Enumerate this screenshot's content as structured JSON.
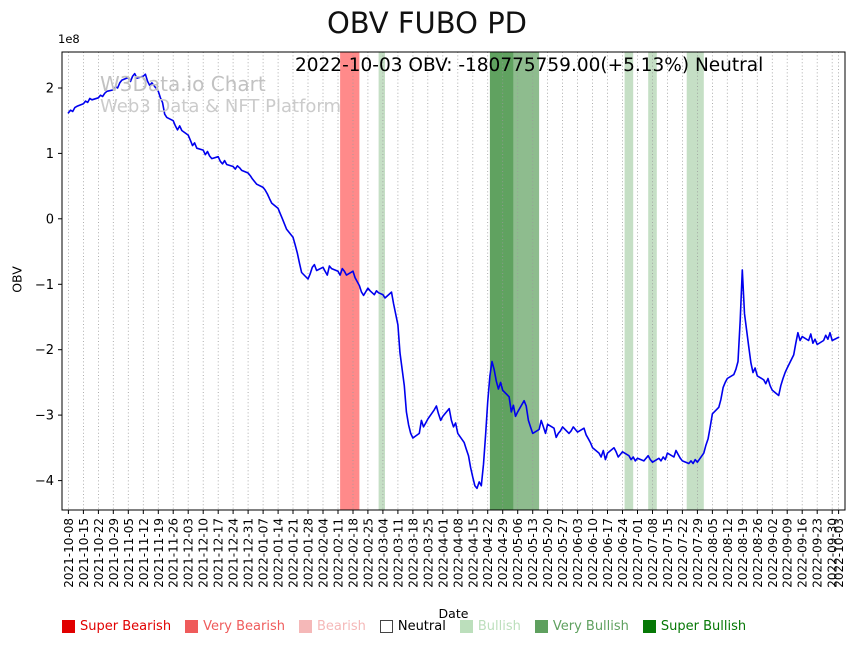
{
  "title": "OBV FUBO PD",
  "annotation": "2022-10-03 OBV: -180775759.00(+5.13%) Neutral",
  "watermark": {
    "line1": "W3Data.io Chart",
    "line2": "Web3 Data & NFT Platform"
  },
  "axes": {
    "ylabel": "OBV",
    "xlabel": "Date",
    "offset_text": "1e8"
  },
  "legend": [
    {
      "id": "super-bearish",
      "label": "Super Bearish",
      "color": "#e10000"
    },
    {
      "id": "very-bearish",
      "label": "Very Bearish",
      "color": "#ef5b5b"
    },
    {
      "id": "bearish",
      "label": "Bearish",
      "color": "#f5b8b8"
    },
    {
      "id": "neutral",
      "label": "Neutral",
      "color": "#ffffff",
      "text_color": "#000000",
      "border": true
    },
    {
      "id": "bullish",
      "label": "Bullish",
      "color": "#bcdfbc"
    },
    {
      "id": "very-bullish",
      "label": "Very Bullish",
      "color": "#5fa05f"
    },
    {
      "id": "super-bullish",
      "label": "Super Bullish",
      "color": "#067806"
    }
  ],
  "chart_data": {
    "type": "line",
    "title": "OBV FUBO PD",
    "xlabel": "Date",
    "ylabel": "OBV",
    "value_scale": 100000000.0,
    "ylim": [
      -4.45,
      2.55
    ],
    "xlim_days": [
      -3,
      363
    ],
    "line_color": "#0000ee",
    "grid": "vertical-dotted",
    "legend_position": "bottom",
    "ytick_values": [
      2,
      1,
      0,
      -1,
      -2,
      -3,
      -4
    ],
    "ytick_labels": [
      "2",
      "1",
      "0",
      "−1",
      "−2",
      "−3",
      "−4"
    ],
    "x_tick_days": [
      0,
      7,
      14,
      21,
      28,
      35,
      42,
      49,
      56,
      63,
      70,
      77,
      84,
      91,
      98,
      105,
      112,
      119,
      126,
      133,
      140,
      147,
      154,
      161,
      168,
      175,
      182,
      189,
      196,
      203,
      210,
      217,
      224,
      231,
      238,
      245,
      252,
      259,
      266,
      273,
      280,
      287,
      294,
      301,
      308,
      315,
      322,
      329,
      336,
      343,
      350,
      357,
      360
    ],
    "x_tick_labels": [
      "2021-10-08",
      "2021-10-15",
      "2021-10-22",
      "2021-10-29",
      "2021-11-05",
      "2021-11-12",
      "2021-11-19",
      "2021-11-26",
      "2021-12-03",
      "2021-12-10",
      "2021-12-17",
      "2021-12-24",
      "2021-12-31",
      "2022-01-07",
      "2022-01-14",
      "2022-01-21",
      "2022-01-28",
      "2022-02-04",
      "2022-02-11",
      "2022-02-18",
      "2022-02-25",
      "2022-03-04",
      "2022-03-11",
      "2022-03-18",
      "2022-03-25",
      "2022-04-01",
      "2022-04-08",
      "2022-04-15",
      "2022-04-22",
      "2022-04-29",
      "2022-05-06",
      "2022-05-13",
      "2022-05-20",
      "2022-05-27",
      "2022-06-03",
      "2022-06-10",
      "2022-06-17",
      "2022-06-24",
      "2022-07-01",
      "2022-07-08",
      "2022-07-15",
      "2022-07-22",
      "2022-07-29",
      "2022-08-05",
      "2022-08-12",
      "2022-08-19",
      "2022-08-26",
      "2022-09-02",
      "2022-09-09",
      "2022-09-16",
      "2022-09-23",
      "2022-09-30",
      "2022-10-03"
    ],
    "bands": [
      {
        "label": "Very Bearish",
        "start_day": 127,
        "end_day": 136,
        "color": "#ff2a2a",
        "opacity": 0.55
      },
      {
        "label": "Bullish",
        "start_day": 145,
        "end_day": 148,
        "color": "#2e8b2e",
        "opacity": 0.28
      },
      {
        "label": "Very Bullish",
        "start_day": 197,
        "end_day": 208,
        "color": "#1d7a1d",
        "opacity": 0.7
      },
      {
        "label": "Very Bullish",
        "start_day": 208,
        "end_day": 220,
        "color": "#1d7a1d",
        "opacity": 0.5
      },
      {
        "label": "Bullish",
        "start_day": 260,
        "end_day": 264,
        "color": "#2e8b2e",
        "opacity": 0.28
      },
      {
        "label": "Bullish",
        "start_day": 271,
        "end_day": 275,
        "color": "#2e8b2e",
        "opacity": 0.28
      },
      {
        "label": "Bullish",
        "start_day": 289,
        "end_day": 297,
        "color": "#2e8b2e",
        "opacity": 0.28
      }
    ],
    "series": [
      {
        "name": "OBV",
        "points": [
          [
            0,
            1.62
          ],
          [
            1,
            1.66
          ],
          [
            2,
            1.64
          ],
          [
            3,
            1.7
          ],
          [
            4,
            1.72
          ],
          [
            7,
            1.76
          ],
          [
            8,
            1.8
          ],
          [
            9,
            1.78
          ],
          [
            10,
            1.84
          ],
          [
            11,
            1.82
          ],
          [
            14,
            1.85
          ],
          [
            15,
            1.89
          ],
          [
            16,
            1.87
          ],
          [
            17,
            1.92
          ],
          [
            18,
            1.95
          ],
          [
            21,
            1.97
          ],
          [
            22,
            2.02
          ],
          [
            23,
            2.0
          ],
          [
            24,
            2.08
          ],
          [
            25,
            2.12
          ],
          [
            28,
            2.16
          ],
          [
            29,
            2.1
          ],
          [
            30,
            2.18
          ],
          [
            31,
            2.22
          ],
          [
            32,
            2.15
          ],
          [
            35,
            2.18
          ],
          [
            36,
            2.21
          ],
          [
            37,
            2.1
          ],
          [
            38,
            2.04
          ],
          [
            39,
            2.08
          ],
          [
            42,
            1.95
          ],
          [
            43,
            1.85
          ],
          [
            44,
            1.78
          ],
          [
            45,
            1.6
          ],
          [
            46,
            1.55
          ],
          [
            49,
            1.5
          ],
          [
            50,
            1.42
          ],
          [
            51,
            1.36
          ],
          [
            52,
            1.42
          ],
          [
            53,
            1.35
          ],
          [
            56,
            1.28
          ],
          [
            57,
            1.2
          ],
          [
            58,
            1.12
          ],
          [
            59,
            1.16
          ],
          [
            60,
            1.08
          ],
          [
            63,
            1.05
          ],
          [
            64,
            0.98
          ],
          [
            65,
            1.03
          ],
          [
            66,
            0.96
          ],
          [
            67,
            0.92
          ],
          [
            70,
            0.95
          ],
          [
            71,
            0.88
          ],
          [
            72,
            0.84
          ],
          [
            73,
            0.89
          ],
          [
            74,
            0.83
          ],
          [
            77,
            0.8
          ],
          [
            78,
            0.76
          ],
          [
            79,
            0.81
          ],
          [
            80,
            0.78
          ],
          [
            81,
            0.74
          ],
          [
            84,
            0.7
          ],
          [
            85,
            0.66
          ],
          [
            86,
            0.61
          ],
          [
            87,
            0.57
          ],
          [
            88,
            0.53
          ],
          [
            91,
            0.48
          ],
          [
            92,
            0.44
          ],
          [
            93,
            0.38
          ],
          [
            94,
            0.31
          ],
          [
            95,
            0.24
          ],
          [
            98,
            0.16
          ],
          [
            99,
            0.08
          ],
          [
            100,
            0.0
          ],
          [
            101,
            -0.08
          ],
          [
            102,
            -0.16
          ],
          [
            105,
            -0.28
          ],
          [
            106,
            -0.4
          ],
          [
            107,
            -0.52
          ],
          [
            108,
            -0.68
          ],
          [
            109,
            -0.82
          ],
          [
            112,
            -0.92
          ],
          [
            113,
            -0.84
          ],
          [
            114,
            -0.74
          ],
          [
            115,
            -0.7
          ],
          [
            116,
            -0.79
          ],
          [
            119,
            -0.74
          ],
          [
            120,
            -0.8
          ],
          [
            121,
            -0.86
          ],
          [
            122,
            -0.72
          ],
          [
            123,
            -0.76
          ],
          [
            126,
            -0.8
          ],
          [
            127,
            -0.86
          ],
          [
            128,
            -0.76
          ],
          [
            129,
            -0.8
          ],
          [
            130,
            -0.86
          ],
          [
            133,
            -0.8
          ],
          [
            134,
            -0.9
          ],
          [
            136,
            -1.02
          ],
          [
            137,
            -1.12
          ],
          [
            138,
            -1.17
          ],
          [
            140,
            -1.06
          ],
          [
            141,
            -1.1
          ],
          [
            143,
            -1.16
          ],
          [
            144,
            -1.1
          ],
          [
            145,
            -1.13
          ],
          [
            147,
            -1.16
          ],
          [
            148,
            -1.21
          ],
          [
            150,
            -1.15
          ],
          [
            151,
            -1.12
          ],
          [
            152,
            -1.3
          ],
          [
            154,
            -1.62
          ],
          [
            155,
            -2.05
          ],
          [
            157,
            -2.55
          ],
          [
            158,
            -2.95
          ],
          [
            159,
            -3.15
          ],
          [
            160,
            -3.28
          ],
          [
            161,
            -3.35
          ],
          [
            164,
            -3.28
          ],
          [
            165,
            -3.08
          ],
          [
            166,
            -3.18
          ],
          [
            167,
            -3.12
          ],
          [
            168,
            -3.06
          ],
          [
            171,
            -2.92
          ],
          [
            172,
            -2.86
          ],
          [
            173,
            -2.98
          ],
          [
            174,
            -3.08
          ],
          [
            175,
            -3.02
          ],
          [
            178,
            -2.9
          ],
          [
            179,
            -3.08
          ],
          [
            180,
            -3.18
          ],
          [
            181,
            -3.12
          ],
          [
            182,
            -3.28
          ],
          [
            185,
            -3.42
          ],
          [
            186,
            -3.52
          ],
          [
            187,
            -3.62
          ],
          [
            188,
            -3.8
          ],
          [
            189,
            -3.95
          ],
          [
            190,
            -4.08
          ],
          [
            191,
            -4.12
          ],
          [
            192,
            -4.02
          ],
          [
            193,
            -4.08
          ],
          [
            194,
            -3.75
          ],
          [
            195,
            -3.3
          ],
          [
            196,
            -2.8
          ],
          [
            197,
            -2.4
          ],
          [
            198,
            -2.18
          ],
          [
            199,
            -2.3
          ],
          [
            200,
            -2.48
          ],
          [
            201,
            -2.6
          ],
          [
            202,
            -2.5
          ],
          [
            203,
            -2.62
          ],
          [
            206,
            -2.72
          ],
          [
            207,
            -2.95
          ],
          [
            208,
            -2.85
          ],
          [
            209,
            -3.02
          ],
          [
            210,
            -2.95
          ],
          [
            213,
            -2.78
          ],
          [
            214,
            -2.86
          ],
          [
            215,
            -3.08
          ],
          [
            216,
            -3.18
          ],
          [
            217,
            -3.28
          ],
          [
            220,
            -3.22
          ],
          [
            221,
            -3.08
          ],
          [
            222,
            -3.18
          ],
          [
            223,
            -3.28
          ],
          [
            224,
            -3.14
          ],
          [
            227,
            -3.2
          ],
          [
            228,
            -3.34
          ],
          [
            229,
            -3.28
          ],
          [
            230,
            -3.24
          ],
          [
            231,
            -3.18
          ],
          [
            234,
            -3.28
          ],
          [
            235,
            -3.24
          ],
          [
            236,
            -3.18
          ],
          [
            237,
            -3.22
          ],
          [
            238,
            -3.26
          ],
          [
            241,
            -3.2
          ],
          [
            242,
            -3.3
          ],
          [
            243,
            -3.36
          ],
          [
            244,
            -3.42
          ],
          [
            245,
            -3.5
          ],
          [
            248,
            -3.58
          ],
          [
            249,
            -3.64
          ],
          [
            250,
            -3.54
          ],
          [
            251,
            -3.68
          ],
          [
            252,
            -3.58
          ],
          [
            255,
            -3.5
          ],
          [
            256,
            -3.56
          ],
          [
            257,
            -3.64
          ],
          [
            258,
            -3.6
          ],
          [
            259,
            -3.56
          ],
          [
            262,
            -3.62
          ],
          [
            263,
            -3.68
          ],
          [
            264,
            -3.64
          ],
          [
            265,
            -3.7
          ],
          [
            266,
            -3.66
          ],
          [
            269,
            -3.7
          ],
          [
            270,
            -3.66
          ],
          [
            271,
            -3.62
          ],
          [
            272,
            -3.68
          ],
          [
            273,
            -3.72
          ],
          [
            276,
            -3.66
          ],
          [
            277,
            -3.7
          ],
          [
            278,
            -3.64
          ],
          [
            279,
            -3.68
          ],
          [
            280,
            -3.58
          ],
          [
            283,
            -3.64
          ],
          [
            284,
            -3.54
          ],
          [
            285,
            -3.6
          ],
          [
            286,
            -3.66
          ],
          [
            287,
            -3.7
          ],
          [
            290,
            -3.74
          ],
          [
            291,
            -3.7
          ],
          [
            292,
            -3.74
          ],
          [
            293,
            -3.68
          ],
          [
            294,
            -3.72
          ],
          [
            297,
            -3.58
          ],
          [
            298,
            -3.46
          ],
          [
            299,
            -3.36
          ],
          [
            300,
            -3.18
          ],
          [
            301,
            -2.98
          ],
          [
            304,
            -2.88
          ],
          [
            305,
            -2.76
          ],
          [
            306,
            -2.58
          ],
          [
            307,
            -2.5
          ],
          [
            308,
            -2.44
          ],
          [
            311,
            -2.38
          ],
          [
            312,
            -2.3
          ],
          [
            313,
            -2.18
          ],
          [
            314,
            -1.55
          ],
          [
            315,
            -0.78
          ],
          [
            316,
            -1.45
          ],
          [
            318,
            -1.95
          ],
          [
            319,
            -2.2
          ],
          [
            320,
            -2.35
          ],
          [
            321,
            -2.28
          ],
          [
            322,
            -2.4
          ],
          [
            325,
            -2.46
          ],
          [
            326,
            -2.52
          ],
          [
            327,
            -2.44
          ],
          [
            328,
            -2.55
          ],
          [
            329,
            -2.62
          ],
          [
            332,
            -2.7
          ],
          [
            333,
            -2.55
          ],
          [
            334,
            -2.44
          ],
          [
            335,
            -2.35
          ],
          [
            336,
            -2.28
          ],
          [
            339,
            -2.08
          ],
          [
            340,
            -1.9
          ],
          [
            341,
            -1.74
          ],
          [
            342,
            -1.86
          ],
          [
            343,
            -1.8
          ],
          [
            346,
            -1.86
          ],
          [
            347,
            -1.76
          ],
          [
            348,
            -1.9
          ],
          [
            349,
            -1.84
          ],
          [
            350,
            -1.92
          ],
          [
            353,
            -1.86
          ],
          [
            354,
            -1.78
          ],
          [
            355,
            -1.84
          ],
          [
            356,
            -1.74
          ],
          [
            357,
            -1.86
          ],
          [
            360,
            -1.81
          ]
        ]
      }
    ]
  }
}
